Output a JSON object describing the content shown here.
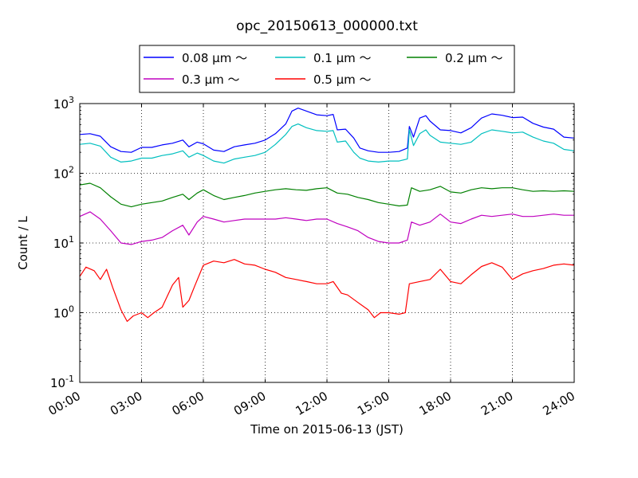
{
  "chart_data": {
    "type": "line",
    "title": "opc_20150613_000000.txt",
    "xlabel": "Time on 2015-06-13 (JST)",
    "ylabel": "Count / L",
    "x_unit": "hours",
    "xlim": [
      0,
      24
    ],
    "ylim": [
      0.1,
      1000
    ],
    "yscale": "log",
    "grid": true,
    "legend_position": "top-center",
    "x_ticks": [
      "00:00",
      "03:00",
      "06:00",
      "09:00",
      "12:00",
      "15:00",
      "18:00",
      "21:00",
      "24:00"
    ],
    "y_ticks": [
      {
        "base": "10",
        "exp": "-1"
      },
      {
        "base": "10",
        "exp": "0"
      },
      {
        "base": "10",
        "exp": "1"
      },
      {
        "base": "10",
        "exp": "2"
      },
      {
        "base": "10",
        "exp": "3"
      }
    ],
    "series": [
      {
        "name": "0.08 μm ～",
        "color": "#0000ff",
        "points": [
          [
            0,
            360
          ],
          [
            0.5,
            370
          ],
          [
            1,
            340
          ],
          [
            1.5,
            240
          ],
          [
            2,
            205
          ],
          [
            2.5,
            200
          ],
          [
            3,
            235
          ],
          [
            3.5,
            235
          ],
          [
            4,
            255
          ],
          [
            4.5,
            270
          ],
          [
            5,
            300
          ],
          [
            5.3,
            240
          ],
          [
            5.7,
            280
          ],
          [
            6,
            265
          ],
          [
            6.5,
            215
          ],
          [
            7,
            205
          ],
          [
            7.5,
            240
          ],
          [
            8,
            255
          ],
          [
            8.5,
            270
          ],
          [
            9,
            300
          ],
          [
            9.5,
            370
          ],
          [
            10,
            510
          ],
          [
            10.3,
            780
          ],
          [
            10.6,
            860
          ],
          [
            11,
            780
          ],
          [
            11.5,
            690
          ],
          [
            12,
            670
          ],
          [
            12.3,
            700
          ],
          [
            12.5,
            420
          ],
          [
            12.9,
            430
          ],
          [
            13.3,
            320
          ],
          [
            13.6,
            230
          ],
          [
            14,
            210
          ],
          [
            14.5,
            200
          ],
          [
            15,
            200
          ],
          [
            15.5,
            205
          ],
          [
            15.9,
            230
          ],
          [
            16,
            470
          ],
          [
            16.2,
            330
          ],
          [
            16.5,
            620
          ],
          [
            16.8,
            670
          ],
          [
            17,
            560
          ],
          [
            17.5,
            420
          ],
          [
            18,
            410
          ],
          [
            18.5,
            380
          ],
          [
            19,
            450
          ],
          [
            19.5,
            620
          ],
          [
            20,
            710
          ],
          [
            20.5,
            680
          ],
          [
            21,
            630
          ],
          [
            21.5,
            640
          ],
          [
            22,
            520
          ],
          [
            22.5,
            460
          ],
          [
            23,
            430
          ],
          [
            23.5,
            330
          ],
          [
            24,
            320
          ]
        ]
      },
      {
        "name": "0.1 μm ～",
        "color": "#00bfbf",
        "points": [
          [
            0,
            260
          ],
          [
            0.5,
            270
          ],
          [
            1,
            245
          ],
          [
            1.5,
            170
          ],
          [
            2,
            145
          ],
          [
            2.5,
            150
          ],
          [
            3,
            165
          ],
          [
            3.5,
            165
          ],
          [
            4,
            180
          ],
          [
            4.5,
            190
          ],
          [
            5,
            210
          ],
          [
            5.3,
            170
          ],
          [
            5.7,
            195
          ],
          [
            6,
            180
          ],
          [
            6.5,
            150
          ],
          [
            7,
            140
          ],
          [
            7.5,
            160
          ],
          [
            8,
            170
          ],
          [
            8.5,
            180
          ],
          [
            9,
            200
          ],
          [
            9.5,
            260
          ],
          [
            10,
            360
          ],
          [
            10.3,
            470
          ],
          [
            10.6,
            510
          ],
          [
            11,
            450
          ],
          [
            11.5,
            410
          ],
          [
            12,
            400
          ],
          [
            12.3,
            410
          ],
          [
            12.5,
            280
          ],
          [
            12.9,
            290
          ],
          [
            13.3,
            200
          ],
          [
            13.6,
            165
          ],
          [
            14,
            150
          ],
          [
            14.5,
            145
          ],
          [
            15,
            150
          ],
          [
            15.5,
            150
          ],
          [
            15.9,
            160
          ],
          [
            16,
            420
          ],
          [
            16.2,
            250
          ],
          [
            16.5,
            370
          ],
          [
            16.8,
            420
          ],
          [
            17,
            350
          ],
          [
            17.5,
            280
          ],
          [
            18,
            270
          ],
          [
            18.5,
            260
          ],
          [
            19,
            280
          ],
          [
            19.5,
            370
          ],
          [
            20,
            420
          ],
          [
            20.5,
            400
          ],
          [
            21,
            380
          ],
          [
            21.5,
            390
          ],
          [
            22,
            330
          ],
          [
            22.5,
            290
          ],
          [
            23,
            270
          ],
          [
            23.5,
            220
          ],
          [
            24,
            210
          ]
        ]
      },
      {
        "name": "0.2 μm ～",
        "color": "#008000",
        "points": [
          [
            0,
            68
          ],
          [
            0.5,
            72
          ],
          [
            1,
            62
          ],
          [
            1.5,
            46
          ],
          [
            2,
            36
          ],
          [
            2.5,
            33
          ],
          [
            3,
            36
          ],
          [
            3.5,
            38
          ],
          [
            4,
            40
          ],
          [
            4.5,
            45
          ],
          [
            5,
            50
          ],
          [
            5.3,
            42
          ],
          [
            5.7,
            52
          ],
          [
            6,
            58
          ],
          [
            6.5,
            48
          ],
          [
            7,
            42
          ],
          [
            7.5,
            45
          ],
          [
            8,
            48
          ],
          [
            8.5,
            52
          ],
          [
            9,
            55
          ],
          [
            9.5,
            58
          ],
          [
            10,
            60
          ],
          [
            10.5,
            58
          ],
          [
            11,
            57
          ],
          [
            11.5,
            60
          ],
          [
            12,
            62
          ],
          [
            12.5,
            52
          ],
          [
            13,
            50
          ],
          [
            13.5,
            45
          ],
          [
            14,
            42
          ],
          [
            14.5,
            38
          ],
          [
            15,
            36
          ],
          [
            15.5,
            34
          ],
          [
            15.9,
            35
          ],
          [
            16.1,
            62
          ],
          [
            16.5,
            55
          ],
          [
            17,
            58
          ],
          [
            17.5,
            65
          ],
          [
            18,
            54
          ],
          [
            18.5,
            52
          ],
          [
            19,
            58
          ],
          [
            19.5,
            62
          ],
          [
            20,
            60
          ],
          [
            20.5,
            62
          ],
          [
            21,
            62
          ],
          [
            21.5,
            58
          ],
          [
            22,
            55
          ],
          [
            22.5,
            56
          ],
          [
            23,
            55
          ],
          [
            23.5,
            56
          ],
          [
            24,
            55
          ]
        ]
      },
      {
        "name": "0.3 μm ～",
        "color": "#bf00bf",
        "points": [
          [
            0,
            24
          ],
          [
            0.5,
            28
          ],
          [
            1,
            22
          ],
          [
            1.5,
            15
          ],
          [
            2,
            10
          ],
          [
            2.5,
            9.5
          ],
          [
            3,
            10.5
          ],
          [
            3.5,
            11
          ],
          [
            4,
            12
          ],
          [
            4.5,
            15
          ],
          [
            5,
            18
          ],
          [
            5.3,
            13
          ],
          [
            5.7,
            20
          ],
          [
            6,
            24
          ],
          [
            6.5,
            22
          ],
          [
            7,
            20
          ],
          [
            7.5,
            21
          ],
          [
            8,
            22
          ],
          [
            8.5,
            22
          ],
          [
            9,
            22
          ],
          [
            9.5,
            22
          ],
          [
            10,
            23
          ],
          [
            10.5,
            22
          ],
          [
            11,
            21
          ],
          [
            11.5,
            22
          ],
          [
            12,
            22
          ],
          [
            12.5,
            19
          ],
          [
            13,
            17
          ],
          [
            13.5,
            15
          ],
          [
            14,
            12
          ],
          [
            14.5,
            10.5
          ],
          [
            15,
            10
          ],
          [
            15.5,
            10
          ],
          [
            15.9,
            11
          ],
          [
            16.1,
            20
          ],
          [
            16.5,
            18
          ],
          [
            17,
            20
          ],
          [
            17.5,
            26
          ],
          [
            18,
            20
          ],
          [
            18.5,
            19
          ],
          [
            19,
            22
          ],
          [
            19.5,
            25
          ],
          [
            20,
            24
          ],
          [
            20.5,
            25
          ],
          [
            21,
            26
          ],
          [
            21.5,
            24
          ],
          [
            22,
            24
          ],
          [
            22.5,
            25
          ],
          [
            23,
            26
          ],
          [
            23.5,
            25
          ],
          [
            24,
            25
          ]
        ]
      },
      {
        "name": "0.5 μm ～",
        "color": "#ff0000",
        "points": [
          [
            0,
            3.3
          ],
          [
            0.3,
            4.5
          ],
          [
            0.7,
            4.0
          ],
          [
            1,
            3.0
          ],
          [
            1.3,
            4.2
          ],
          [
            1.6,
            2.3
          ],
          [
            2,
            1.1
          ],
          [
            2.3,
            0.75
          ],
          [
            2.6,
            0.9
          ],
          [
            3,
            1.0
          ],
          [
            3.3,
            0.85
          ],
          [
            3.6,
            1.0
          ],
          [
            4,
            1.2
          ],
          [
            4.5,
            2.5
          ],
          [
            4.8,
            3.2
          ],
          [
            5,
            1.2
          ],
          [
            5.3,
            1.5
          ],
          [
            5.6,
            2.5
          ],
          [
            6,
            4.8
          ],
          [
            6.5,
            5.5
          ],
          [
            7,
            5.2
          ],
          [
            7.5,
            5.8
          ],
          [
            8,
            5.0
          ],
          [
            8.5,
            4.8
          ],
          [
            9,
            4.2
          ],
          [
            9.5,
            3.8
          ],
          [
            10,
            3.2
          ],
          [
            10.5,
            3.0
          ],
          [
            11,
            2.8
          ],
          [
            11.5,
            2.6
          ],
          [
            12,
            2.6
          ],
          [
            12.3,
            2.8
          ],
          [
            12.7,
            1.9
          ],
          [
            13,
            1.8
          ],
          [
            13.5,
            1.4
          ],
          [
            14,
            1.1
          ],
          [
            14.3,
            0.85
          ],
          [
            14.6,
            1.0
          ],
          [
            15,
            1.0
          ],
          [
            15.5,
            0.95
          ],
          [
            15.8,
            1.0
          ],
          [
            16,
            2.6
          ],
          [
            16.5,
            2.8
          ],
          [
            17,
            3.0
          ],
          [
            17.5,
            4.2
          ],
          [
            18,
            2.8
          ],
          [
            18.5,
            2.6
          ],
          [
            19,
            3.5
          ],
          [
            19.5,
            4.6
          ],
          [
            20,
            5.2
          ],
          [
            20.5,
            4.5
          ],
          [
            21,
            3.0
          ],
          [
            21.5,
            3.6
          ],
          [
            22,
            4.0
          ],
          [
            22.5,
            4.3
          ],
          [
            23,
            4.8
          ],
          [
            23.5,
            5.0
          ],
          [
            24,
            4.8
          ]
        ]
      }
    ]
  }
}
